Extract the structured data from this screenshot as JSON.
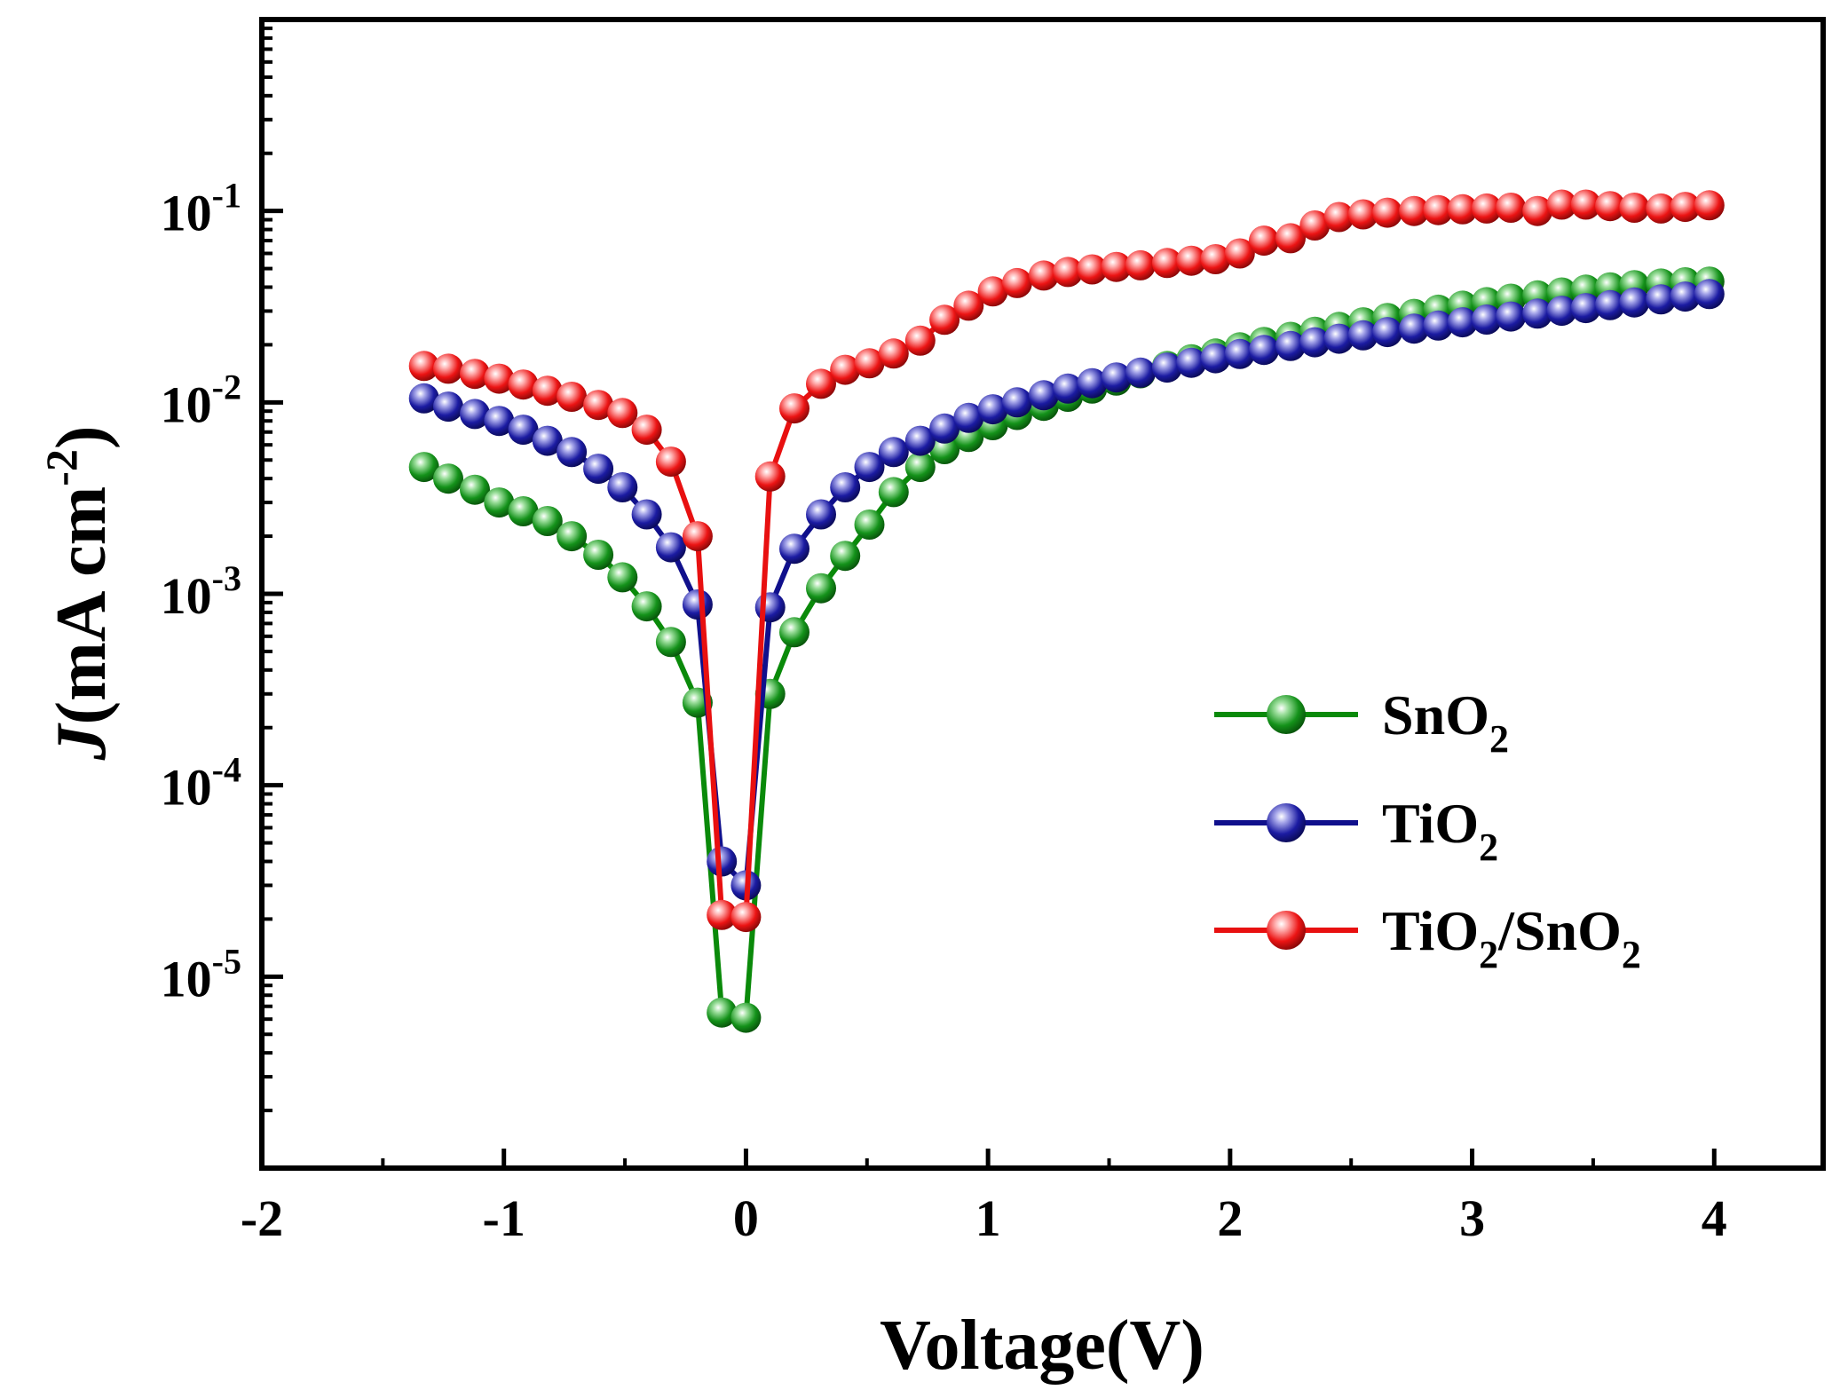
{
  "chart_data": {
    "type": "line",
    "title": "",
    "xlabel": "Voltage(V)",
    "ylabel_italic": "J",
    "ylabel_rest": "(mA cm",
    "ylabel_exp": "-2",
    "ylabel_close": ")",
    "yscale": "log",
    "xlim": [
      -2,
      4.45
    ],
    "ylim": [
      1e-06,
      1
    ],
    "x_ticks": [
      -2,
      -1,
      0,
      1,
      2,
      3,
      4
    ],
    "x_tick_labels": [
      "-2",
      "-1",
      "0",
      "1",
      "2",
      "3",
      "4"
    ],
    "y_ticks": [
      1e-05,
      0.0001,
      0.001,
      0.01,
      0.1
    ],
    "y_tick_labels": [
      {
        "base": "10",
        "exp": "-5"
      },
      {
        "base": "10",
        "exp": "-4"
      },
      {
        "base": "10",
        "exp": "-3"
      },
      {
        "base": "10",
        "exp": "-2"
      },
      {
        "base": "10",
        "exp": "-1"
      }
    ],
    "legend_position": "lower-right",
    "series": [
      {
        "key": "sno2",
        "name": "SnO",
        "name_sub": "2",
        "name_suffix": "",
        "name_sub2": "",
        "color": "#0a8a0a",
        "x": [
          -1.33,
          -1.23,
          -1.12,
          -1.02,
          -0.92,
          -0.82,
          -0.72,
          -0.61,
          -0.51,
          -0.41,
          -0.31,
          -0.2,
          -0.1,
          0.0,
          0.1,
          0.2,
          0.31,
          0.41,
          0.51,
          0.61,
          0.72,
          0.82,
          0.92,
          1.02,
          1.12,
          1.23,
          1.33,
          1.43,
          1.53,
          1.63,
          1.74,
          1.84,
          1.94,
          2.04,
          2.14,
          2.25,
          2.35,
          2.45,
          2.55,
          2.65,
          2.76,
          2.86,
          2.96,
          3.06,
          3.16,
          3.27,
          3.37,
          3.47,
          3.57,
          3.67,
          3.78,
          3.88,
          3.98
        ],
        "y": [
          0.0046,
          0.004,
          0.0035,
          0.003,
          0.0027,
          0.0024,
          0.002,
          0.0016,
          0.00122,
          0.00086,
          0.00056,
          0.00027,
          6.5e-06,
          6.1e-06,
          0.0003,
          0.00063,
          0.00107,
          0.00158,
          0.0023,
          0.0034,
          0.0046,
          0.0057,
          0.0066,
          0.0076,
          0.0086,
          0.0096,
          0.0107,
          0.0118,
          0.013,
          0.0142,
          0.0155,
          0.0168,
          0.018,
          0.0194,
          0.0207,
          0.022,
          0.0234,
          0.0248,
          0.0262,
          0.0276,
          0.029,
          0.0305,
          0.032,
          0.0334,
          0.0348,
          0.0362,
          0.0375,
          0.0388,
          0.0399,
          0.041,
          0.0418,
          0.0424,
          0.0428
        ]
      },
      {
        "key": "tio2",
        "name": "TiO",
        "name_sub": "2",
        "name_suffix": "",
        "name_sub2": "",
        "color": "#10108c",
        "x": [
          -1.33,
          -1.23,
          -1.12,
          -1.02,
          -0.92,
          -0.82,
          -0.72,
          -0.61,
          -0.51,
          -0.41,
          -0.31,
          -0.2,
          -0.1,
          0.0,
          0.1,
          0.2,
          0.31,
          0.41,
          0.51,
          0.61,
          0.72,
          0.82,
          0.92,
          1.02,
          1.12,
          1.23,
          1.33,
          1.43,
          1.53,
          1.63,
          1.74,
          1.84,
          1.94,
          2.04,
          2.14,
          2.25,
          2.35,
          2.45,
          2.55,
          2.65,
          2.76,
          2.86,
          2.96,
          3.06,
          3.16,
          3.27,
          3.37,
          3.47,
          3.57,
          3.67,
          3.78,
          3.88,
          3.98
        ],
        "y": [
          0.0105,
          0.0095,
          0.0087,
          0.008,
          0.0072,
          0.0063,
          0.0055,
          0.0045,
          0.0036,
          0.0026,
          0.00175,
          0.00088,
          4e-05,
          3e-05,
          0.00085,
          0.00172,
          0.0026,
          0.0036,
          0.0046,
          0.0055,
          0.0063,
          0.0073,
          0.0083,
          0.0092,
          0.01,
          0.0109,
          0.0118,
          0.0126,
          0.0135,
          0.0143,
          0.0152,
          0.0161,
          0.017,
          0.0179,
          0.0188,
          0.0197,
          0.0206,
          0.0215,
          0.0224,
          0.0233,
          0.0243,
          0.0252,
          0.0262,
          0.0271,
          0.0281,
          0.0291,
          0.0301,
          0.0311,
          0.0322,
          0.0333,
          0.0345,
          0.0357,
          0.0368
        ]
      },
      {
        "key": "tio2sno2",
        "name": "TiO",
        "name_sub": "2",
        "name_suffix": "/SnO",
        "name_sub2": "2",
        "color": "#e81010",
        "x": [
          -1.33,
          -1.23,
          -1.12,
          -1.02,
          -0.92,
          -0.82,
          -0.72,
          -0.61,
          -0.51,
          -0.41,
          -0.31,
          -0.2,
          -0.1,
          0.0,
          0.1,
          0.2,
          0.31,
          0.41,
          0.51,
          0.61,
          0.72,
          0.82,
          0.92,
          1.02,
          1.12,
          1.23,
          1.33,
          1.43,
          1.53,
          1.63,
          1.74,
          1.84,
          1.94,
          2.04,
          2.14,
          2.25,
          2.35,
          2.45,
          2.55,
          2.65,
          2.76,
          2.86,
          2.96,
          3.06,
          3.16,
          3.27,
          3.37,
          3.47,
          3.57,
          3.67,
          3.78,
          3.88,
          3.98
        ],
        "y": [
          0.0155,
          0.015,
          0.0141,
          0.0133,
          0.0124,
          0.0115,
          0.0107,
          0.0097,
          0.0088,
          0.0072,
          0.0049,
          0.002,
          2.1e-05,
          2.05e-05,
          0.0041,
          0.0093,
          0.0125,
          0.0148,
          0.016,
          0.018,
          0.021,
          0.027,
          0.032,
          0.038,
          0.042,
          0.046,
          0.048,
          0.0495,
          0.051,
          0.052,
          0.0535,
          0.055,
          0.056,
          0.06,
          0.07,
          0.072,
          0.084,
          0.093,
          0.096,
          0.098,
          0.1,
          0.101,
          0.102,
          0.103,
          0.104,
          0.1,
          0.108,
          0.108,
          0.106,
          0.104,
          0.103,
          0.105,
          0.107
        ]
      }
    ]
  }
}
